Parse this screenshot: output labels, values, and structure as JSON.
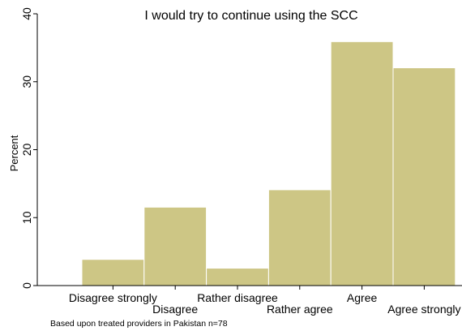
{
  "chart_data": {
    "type": "bar",
    "title": "I would try to continue using the SCC",
    "ylabel": "Percent",
    "xlabel": "",
    "note": "Based upon treated providers in Pakistan n=78",
    "categories": [
      "Disagree strongly",
      "Disagree",
      "Rather disagree",
      "Rather agree",
      "Agree",
      "Agree strongly"
    ],
    "values": [
      3.85,
      11.54,
      2.56,
      14.1,
      35.9,
      32.05
    ],
    "ylim": [
      0,
      40
    ],
    "yticks": [
      "0",
      "10",
      "20",
      "30",
      "40"
    ],
    "grid": false,
    "bar_color": "#cdc685",
    "bar_edge_color": "#ffffff"
  }
}
